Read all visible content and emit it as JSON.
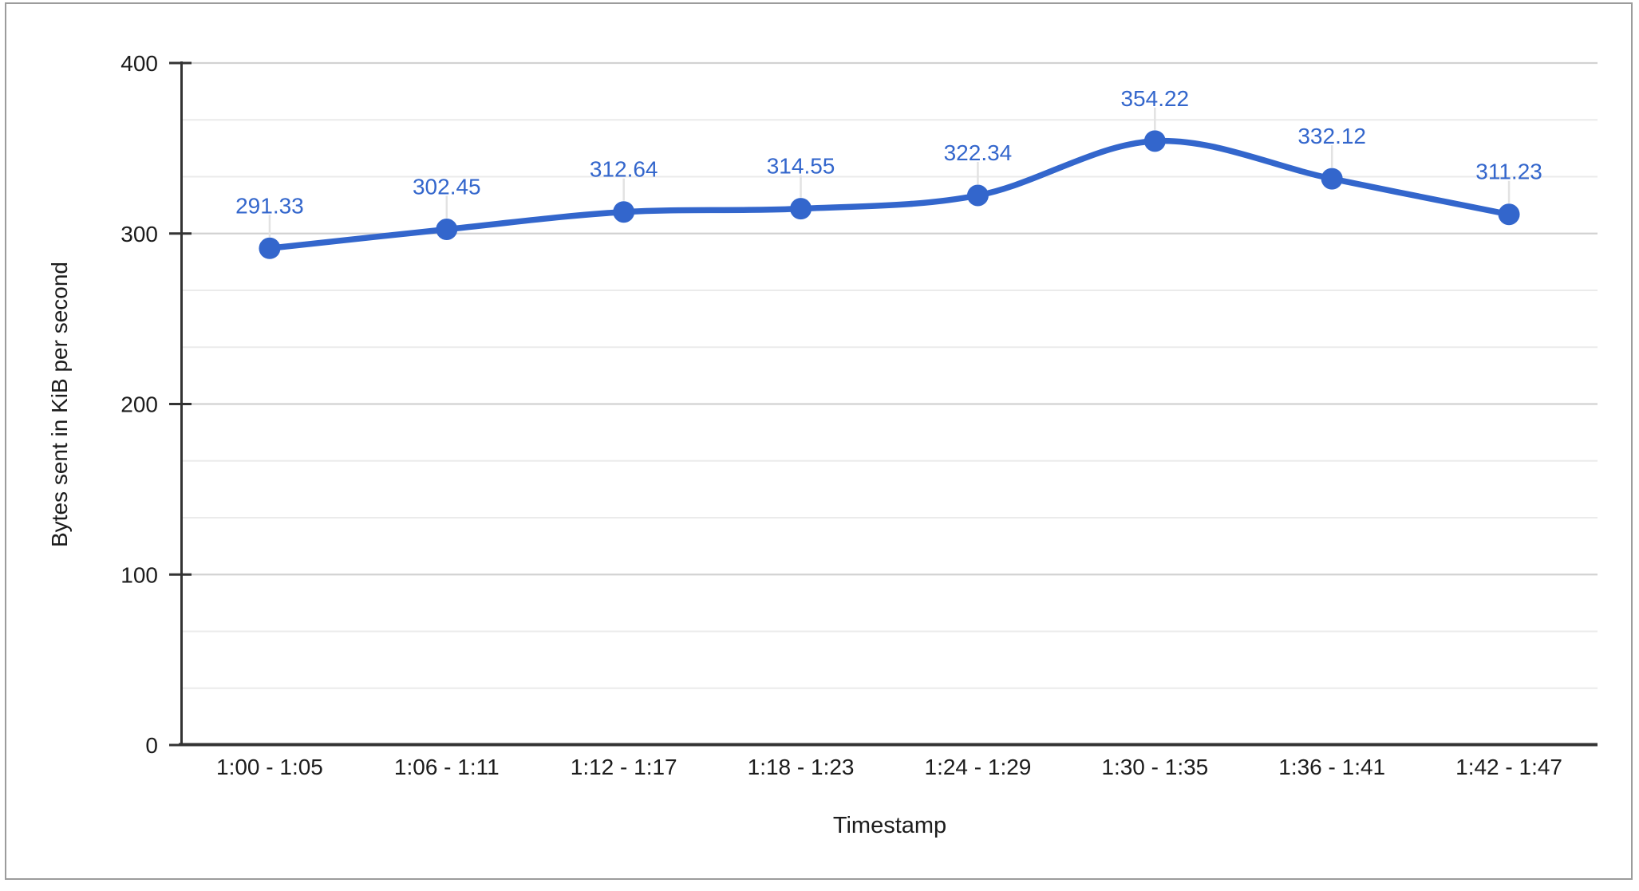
{
  "chart_data": {
    "type": "line",
    "curve": "smooth",
    "title": "",
    "xlabel": "Timestamp",
    "ylabel": "Bytes sent in KiB per second",
    "categories": [
      "1:00 - 1:05",
      "1:06 - 1:11",
      "1:12 - 1:17",
      "1:18 - 1:23",
      "1:24 - 1:29",
      "1:30 - 1:35",
      "1:36 - 1:41",
      "1:42 - 1:47"
    ],
    "series": [
      {
        "name": "Bytes sent in KiB per second",
        "values": [
          291.33,
          302.45,
          312.64,
          314.55,
          322.34,
          354.22,
          332.12,
          311.23
        ],
        "point_labels": [
          "291.33",
          "302.45",
          "312.64",
          "314.55",
          "322.34",
          "354.22",
          "332.12",
          "311.23"
        ],
        "color": "#3366cc"
      }
    ],
    "ylim": [
      0,
      400
    ],
    "yticks": [
      0,
      100,
      200,
      300,
      400
    ],
    "ytick_labels": [
      "0",
      "100",
      "200",
      "300",
      "400"
    ],
    "minor_gridlines_per_major": 3,
    "grid": true,
    "legend": "none",
    "colors": {
      "series_blue": "#3366cc",
      "data_label_blue": "#3366cc",
      "major_gridline": "#d2d2d2",
      "minor_gridline": "#ebebeb",
      "leader_line": "#e2e2e2",
      "axis_line": "#333333",
      "tick_text": "#1c1c1c",
      "frame_border": "#9c9c9c",
      "background": "#ffffff"
    }
  }
}
